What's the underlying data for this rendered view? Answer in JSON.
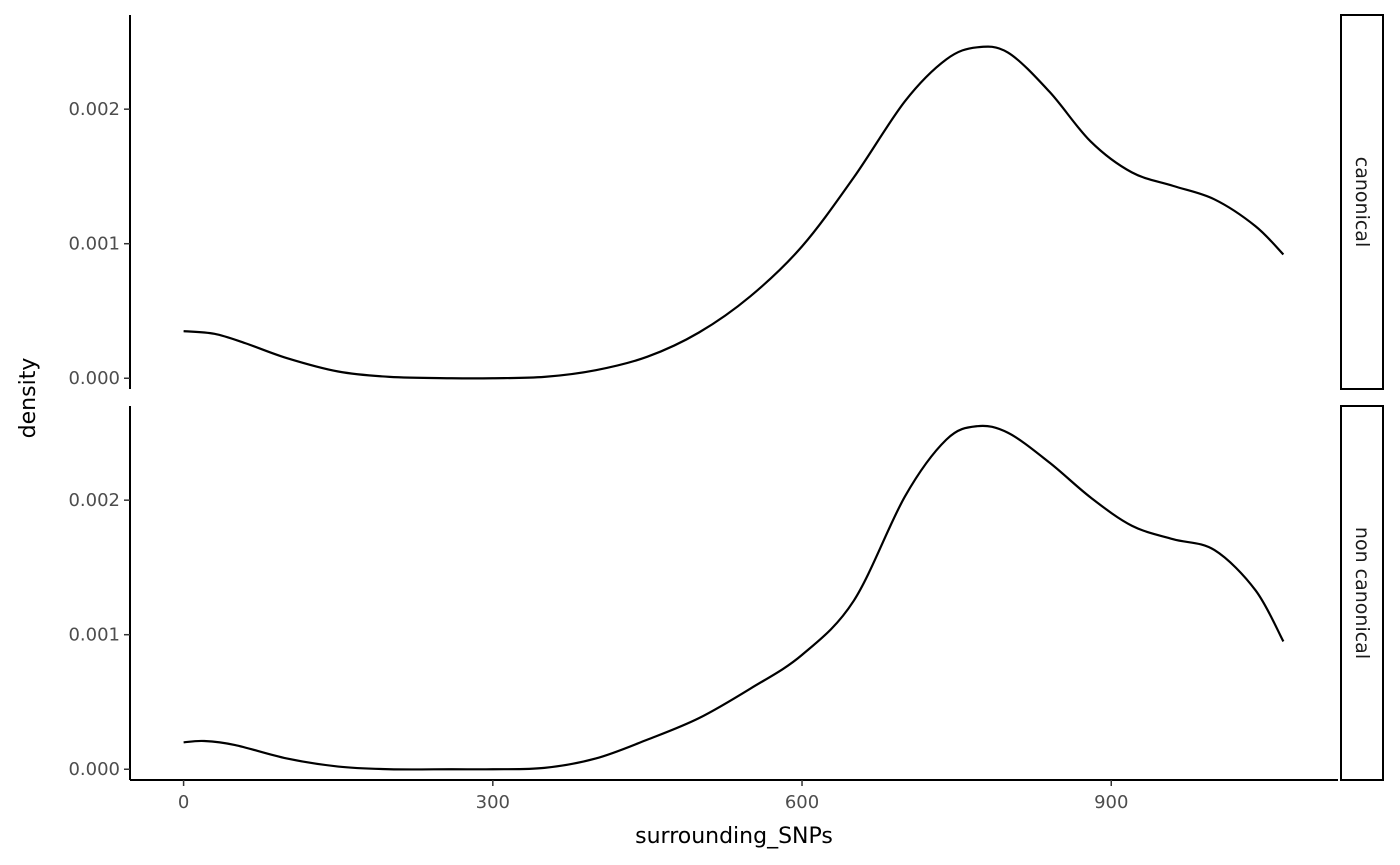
{
  "chart_data": {
    "type": "line",
    "chart_kind": "density facet plot",
    "xlabel": "surrounding_SNPs",
    "ylabel": "density",
    "xlim": [
      -52,
      1120
    ],
    "ylim": [
      -8e-05,
      0.0027
    ],
    "x_ticks": [
      0,
      300,
      600,
      900
    ],
    "x_tick_labels": [
      "0",
      "300",
      "600",
      "900"
    ],
    "y_ticks": [
      0.0,
      0.001,
      0.002
    ],
    "y_tick_labels": [
      "0.000",
      "0.001",
      "0.002"
    ],
    "grid": false,
    "line_color": "#000000",
    "facets": [
      {
        "label": "canonical",
        "x": [
          0,
          30,
          60,
          100,
          150,
          200,
          260,
          300,
          350,
          400,
          450,
          500,
          550,
          600,
          650,
          700,
          740,
          770,
          800,
          840,
          880,
          920,
          960,
          1000,
          1040,
          1067
        ],
        "y": [
          0.00035,
          0.00033,
          0.00026,
          0.00015,
          5e-05,
          1e-05,
          0.0,
          0.0,
          1e-05,
          6e-05,
          0.00016,
          0.00034,
          0.00061,
          0.00098,
          0.00149,
          0.00206,
          0.00237,
          0.00246,
          0.00242,
          0.00213,
          0.00176,
          0.00153,
          0.00143,
          0.00133,
          0.00113,
          0.00092
        ]
      },
      {
        "label": "non canonical",
        "x": [
          0,
          20,
          50,
          100,
          150,
          200,
          260,
          300,
          350,
          400,
          450,
          500,
          550,
          600,
          650,
          700,
          740,
          770,
          800,
          840,
          880,
          920,
          960,
          1000,
          1040,
          1067
        ],
        "y": [
          0.0002,
          0.00021,
          0.00018,
          8e-05,
          2e-05,
          0.0,
          0.0,
          0.0,
          1e-05,
          8e-05,
          0.00022,
          0.00038,
          0.0006,
          0.00085,
          0.00125,
          0.00203,
          0.00245,
          0.00255,
          0.0025,
          0.00228,
          0.00202,
          0.00181,
          0.00171,
          0.00163,
          0.00133,
          0.00095
        ]
      }
    ]
  }
}
